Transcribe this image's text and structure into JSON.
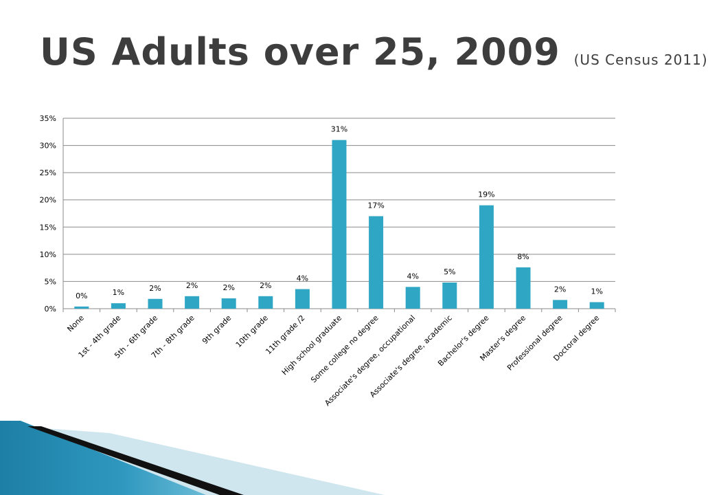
{
  "slide": {
    "title": "US Adults over 25, 2009",
    "subtitle": "(US Census 2011)"
  },
  "colors": {
    "bar": "#2ea6c4",
    "gridline": "#8a8a8a",
    "title_text": "#3d3d3d",
    "accent_blue": "#1d7fa5",
    "accent_light": "#cfe6ef"
  },
  "chart_data": {
    "type": "bar",
    "title": "",
    "xlabel": "",
    "ylabel": "",
    "ylim": [
      0,
      35
    ],
    "yticks": [
      "0%",
      "5%",
      "10%",
      "15%",
      "20%",
      "25%",
      "30%",
      "35%"
    ],
    "grid": true,
    "legend": "none",
    "categories": [
      "None",
      "1st - 4th grade",
      "5th - 6th grade",
      "7th - 8th grade",
      "9th grade",
      "10th grade",
      "11th grade /2",
      "High school graduate",
      "Some college no degree",
      "Associate's degree, occupational",
      "Associate's degree, academic",
      "Bachelor's degree",
      "Master's degree",
      "Professional degree",
      "Doctoral degree"
    ],
    "values": [
      0.4,
      1.0,
      1.8,
      2.3,
      1.9,
      2.3,
      3.6,
      31.0,
      17.0,
      4.0,
      4.8,
      19.0,
      7.6,
      1.6,
      1.2
    ],
    "data_labels": [
      "0%",
      "1%",
      "2%",
      "2%",
      "2%",
      "2%",
      "4%",
      "31%",
      "17%",
      "4%",
      "5%",
      "19%",
      "8%",
      "2%",
      "1%"
    ]
  }
}
